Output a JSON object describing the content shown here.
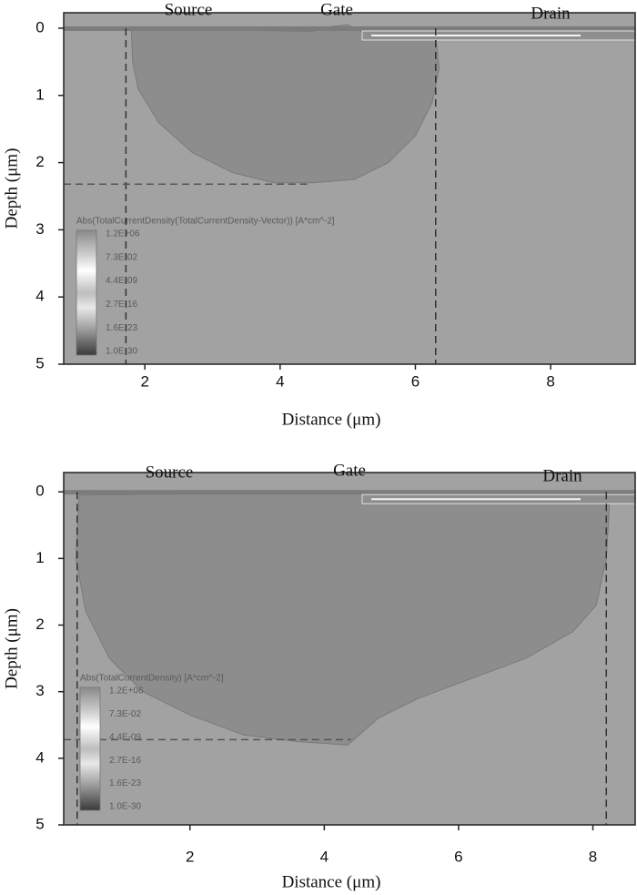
{
  "chart_data": [
    {
      "type": "field",
      "top_labels": [
        "Source",
        "Gate",
        "Drain"
      ],
      "xlabel": "Distance (μm)",
      "ylabel": "Depth (μm)",
      "xlim": [
        0.8,
        9.25
      ],
      "ylim": [
        5,
        -0.23
      ],
      "xticks": [
        2,
        4,
        6,
        8
      ],
      "yticks": [
        0,
        1,
        2,
        3,
        4,
        5
      ],
      "background_color": "#a2a2a2",
      "region_color": "#8d8d8d",
      "region": {
        "x": [
          1.8,
          1.82,
          1.9,
          2.2,
          2.7,
          3.3,
          3.9,
          4.5,
          5.1,
          5.6,
          6.0,
          6.25,
          6.35,
          6.3,
          5.3,
          5.0,
          4.8,
          4.6,
          4.5
        ],
        "y": [
          0.0,
          0.5,
          0.9,
          1.4,
          1.85,
          2.15,
          2.3,
          2.3,
          2.25,
          2.0,
          1.6,
          1.1,
          0.6,
          0.1,
          0.1,
          -0.05,
          -0.03,
          0.0,
          0.05
        ]
      },
      "dashed_x": [
        1.72,
        6.3
      ],
      "dashed_y": [
        2.32
      ],
      "legend_title": "Abs(TotalCurrentDensity(TotalCurrentDensity-Vector)) [A*cm^-2]",
      "legend_labels": [
        "1.2E+06",
        "7.3E-02",
        "4.4E-09",
        "2.7E-16",
        "1.6E-23",
        "1.0E-30"
      ]
    },
    {
      "type": "field",
      "top_labels": [
        "Source",
        "Gate",
        "Drain"
      ],
      "xlabel": "Distance (μm)",
      "ylabel": "Depth (μm)",
      "xlim": [
        0.12,
        8.63
      ],
      "ylim": [
        5,
        -0.29
      ],
      "xticks": [
        2,
        4,
        6,
        8
      ],
      "yticks": [
        0,
        1,
        2,
        3,
        4,
        5
      ],
      "background_color": "#a2a2a2",
      "region_color": "#8d8d8d",
      "region": {
        "x": [
          0.35,
          0.3,
          0.45,
          0.8,
          1.3,
          2.0,
          2.8,
          3.6,
          4.35,
          4.8,
          5.4,
          6.2,
          7.0,
          7.7,
          8.05,
          8.2,
          8.25,
          5.1,
          4.9
        ],
        "y": [
          0.05,
          1.0,
          1.8,
          2.5,
          3.0,
          3.35,
          3.65,
          3.75,
          3.8,
          3.4,
          3.1,
          2.8,
          2.5,
          2.1,
          1.7,
          1.0,
          0.15,
          0.15,
          0.0
        ]
      },
      "dashed_x": [
        0.32,
        8.2
      ],
      "dashed_y": [
        3.72
      ],
      "legend_title": "Abs(TotalCurrentDensity) [A*cm^-2]",
      "legend_labels": [
        "1.2E+06",
        "7.3E-02",
        "4.4E-09",
        "2.7E-16",
        "1.6E-23",
        "1.0E-30"
      ]
    }
  ]
}
